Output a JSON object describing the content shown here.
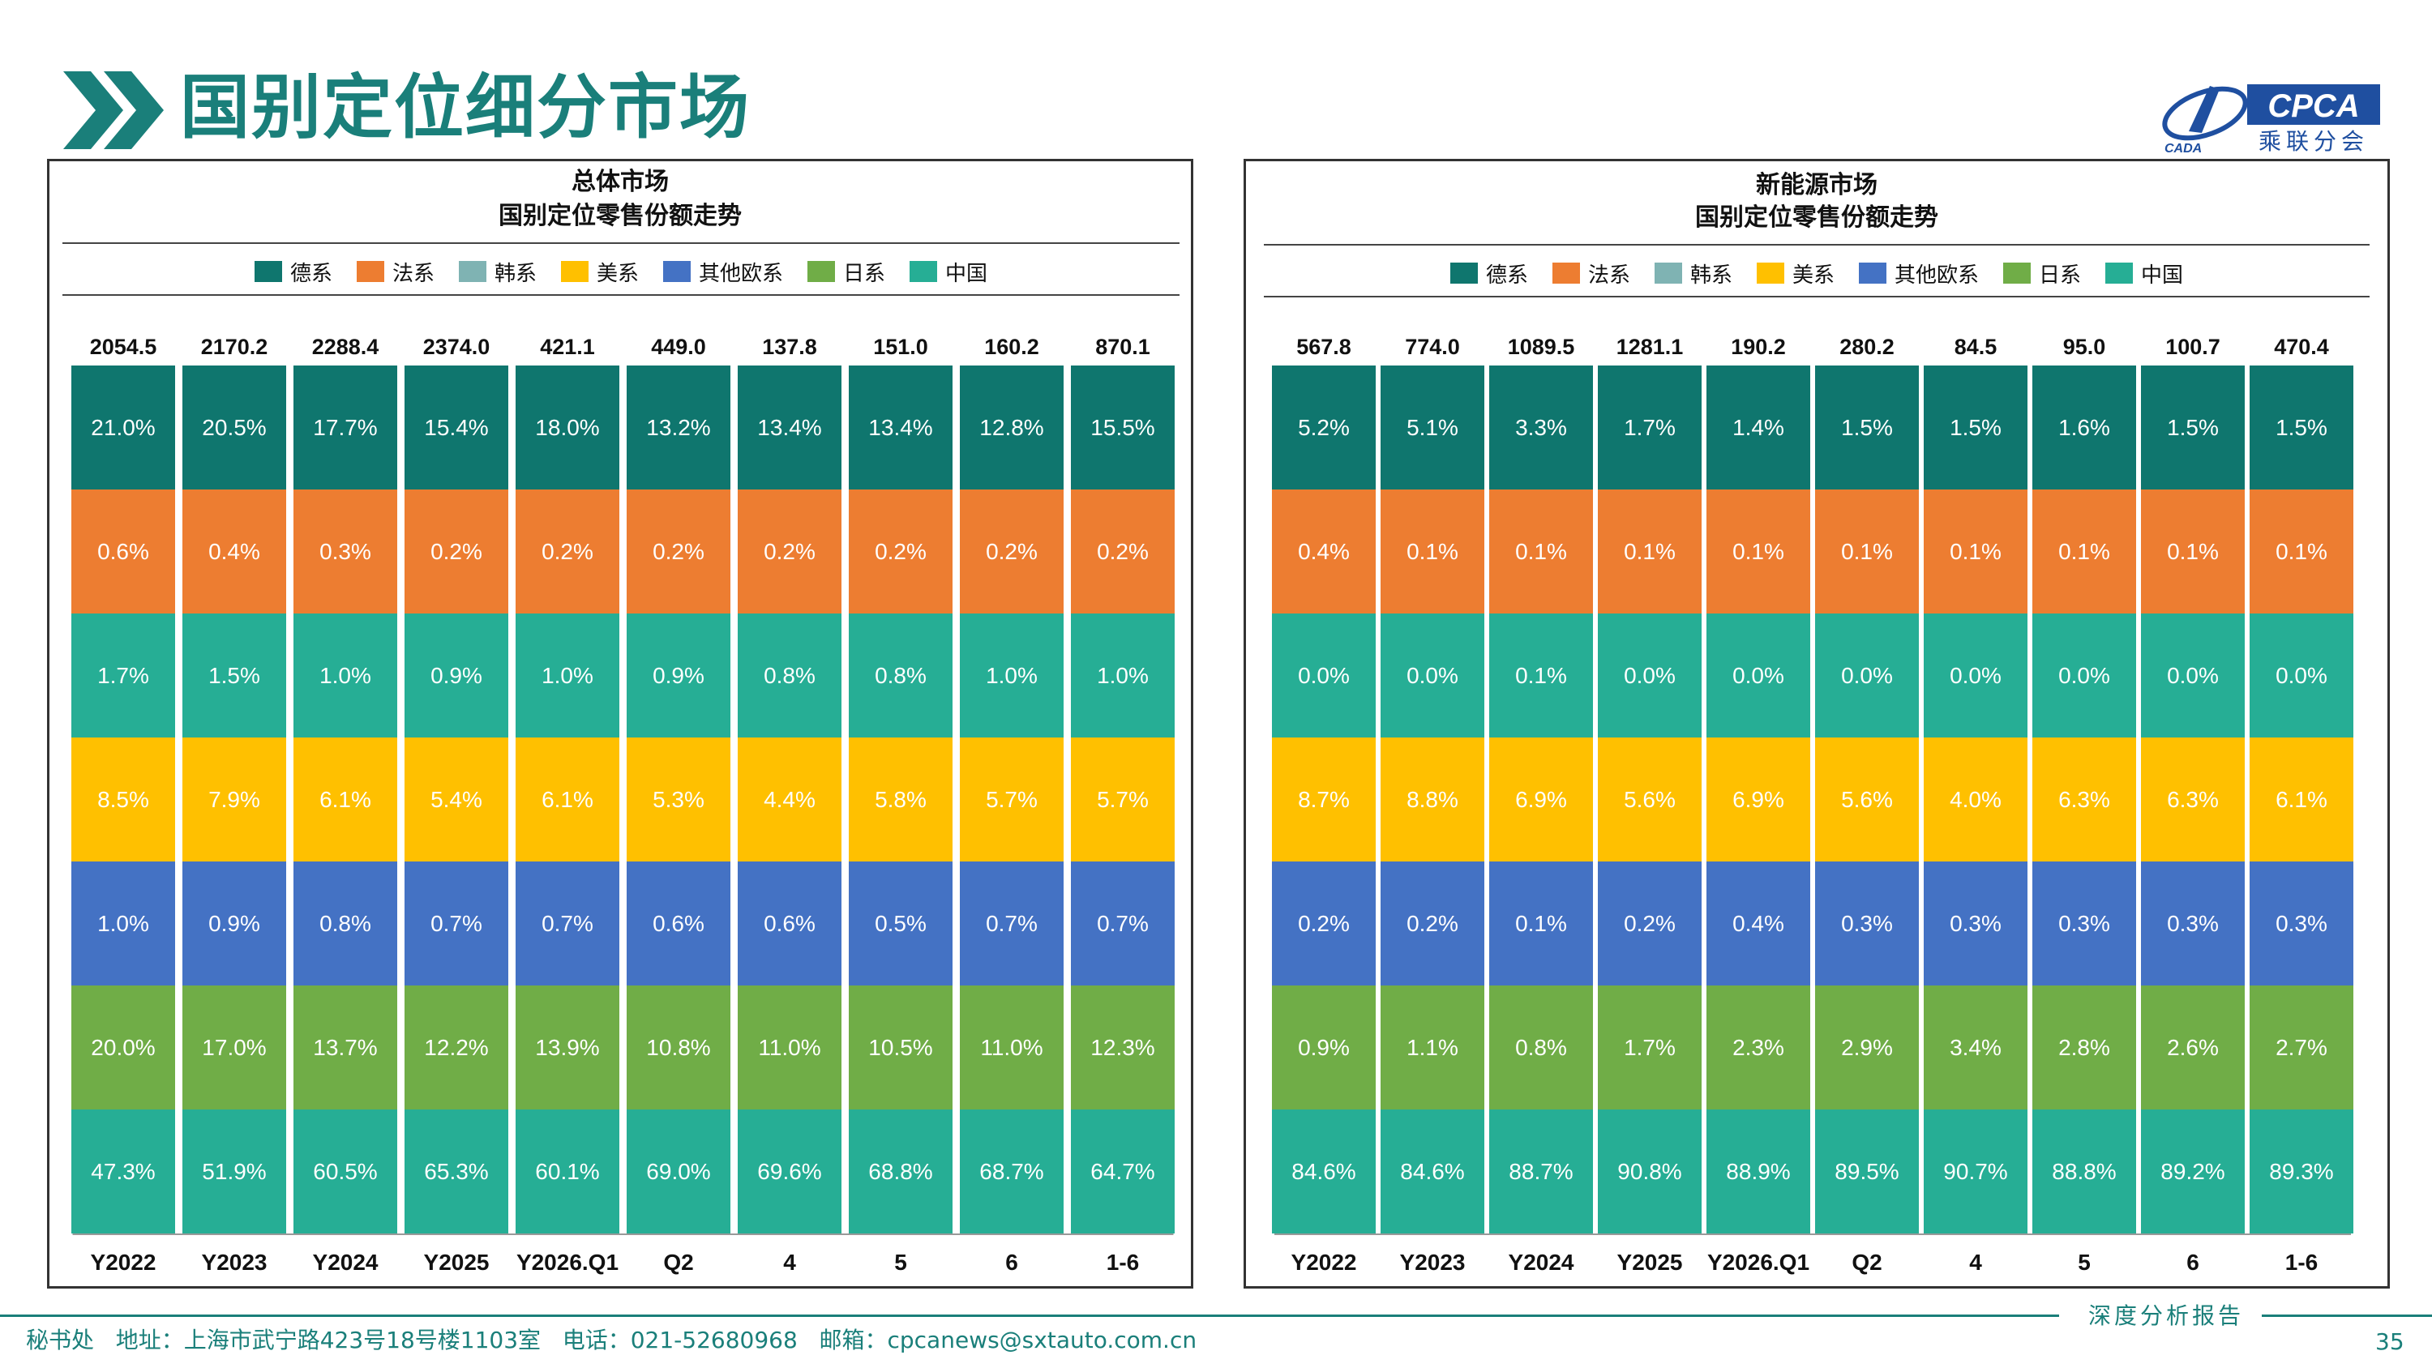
{
  "header": {
    "title": "国别定位细分市场",
    "logo_text": "CPCA",
    "logo_subtext": "乘联分会",
    "logo_small": "CADA"
  },
  "colors": {
    "德系": "#0f766e",
    "法系": "#ed7d31",
    "韩系": "#2aab9a",
    "美系": "#ffc000",
    "其他欧系": "#4472c4",
    "日系": "#70ad47",
    "中国": "#26ae95",
    "accent": "#1a7f7a"
  },
  "chart_data": [
    {
      "type": "bar",
      "stacked": true,
      "percent": true,
      "title": "总体市场",
      "subtitle": "国别定位零售份额走势",
      "legend": [
        "德系",
        "法系",
        "韩系",
        "美系",
        "其他欧系",
        "日系",
        "中国"
      ],
      "legend_position": "top",
      "categories": [
        "Y2022",
        "Y2023",
        "Y2024",
        "Y2025",
        "Y2026.Q1",
        "Q2",
        "4",
        "5",
        "6",
        "1-6"
      ],
      "totals": [
        "2054.5",
        "2170.2",
        "2288.4",
        "2374.0",
        "421.1",
        "449.0",
        "137.8",
        "151.0",
        "160.2",
        "870.1"
      ],
      "series": [
        {
          "name": "德系",
          "labels": [
            "21.0%",
            "20.5%",
            "17.7%",
            "15.4%",
            "18.0%",
            "13.2%",
            "13.4%",
            "13.4%",
            "12.8%",
            "15.5%"
          ]
        },
        {
          "name": "法系",
          "labels": [
            "0.6%",
            "0.4%",
            "0.3%",
            "0.2%",
            "0.2%",
            "0.2%",
            "0.2%",
            "0.2%",
            "0.2%",
            "0.2%"
          ]
        },
        {
          "name": "韩系",
          "labels": [
            "1.7%",
            "1.5%",
            "1.0%",
            "0.9%",
            "1.0%",
            "0.9%",
            "0.8%",
            "0.8%",
            "1.0%",
            "1.0%"
          ]
        },
        {
          "name": "美系",
          "labels": [
            "8.5%",
            "7.9%",
            "6.1%",
            "5.4%",
            "6.1%",
            "5.3%",
            "4.4%",
            "5.8%",
            "5.7%",
            "5.7%"
          ]
        },
        {
          "name": "其他欧系",
          "labels": [
            "1.0%",
            "0.9%",
            "0.8%",
            "0.7%",
            "0.7%",
            "0.6%",
            "0.6%",
            "0.5%",
            "0.7%",
            "0.7%"
          ]
        },
        {
          "name": "日系",
          "labels": [
            "20.0%",
            "17.0%",
            "13.7%",
            "12.2%",
            "13.9%",
            "10.8%",
            "11.0%",
            "10.5%",
            "11.0%",
            "12.3%"
          ]
        },
        {
          "name": "中国",
          "labels": [
            "47.3%",
            "51.9%",
            "60.5%",
            "65.3%",
            "60.1%",
            "69.0%",
            "69.6%",
            "68.8%",
            "68.7%",
            "64.7%"
          ]
        }
      ]
    },
    {
      "type": "bar",
      "stacked": true,
      "percent": true,
      "title": "新能源市场",
      "subtitle": "国别定位零售份额走势",
      "legend": [
        "德系",
        "法系",
        "韩系",
        "美系",
        "其他欧系",
        "日系",
        "中国"
      ],
      "legend_position": "top",
      "categories": [
        "Y2022",
        "Y2023",
        "Y2024",
        "Y2025",
        "Y2026.Q1",
        "Q2",
        "4",
        "5",
        "6",
        "1-6"
      ],
      "totals": [
        "567.8",
        "774.0",
        "1089.5",
        "1281.1",
        "190.2",
        "280.2",
        "84.5",
        "95.0",
        "100.7",
        "470.4"
      ],
      "series": [
        {
          "name": "德系",
          "labels": [
            "5.2%",
            "5.1%",
            "3.3%",
            "1.7%",
            "1.4%",
            "1.5%",
            "1.5%",
            "1.6%",
            "1.5%",
            "1.5%"
          ]
        },
        {
          "name": "法系",
          "labels": [
            "0.4%",
            "0.1%",
            "0.1%",
            "0.1%",
            "0.1%",
            "0.1%",
            "0.1%",
            "0.1%",
            "0.1%",
            "0.1%"
          ]
        },
        {
          "name": "韩系",
          "labels": [
            "0.0%",
            "0.0%",
            "0.1%",
            "0.0%",
            "0.0%",
            "0.0%",
            "0.0%",
            "0.0%",
            "0.0%",
            "0.0%"
          ]
        },
        {
          "name": "美系",
          "labels": [
            "8.7%",
            "8.8%",
            "6.9%",
            "5.6%",
            "6.9%",
            "5.6%",
            "4.0%",
            "6.3%",
            "6.3%",
            "6.1%"
          ]
        },
        {
          "name": "其他欧系",
          "labels": [
            "0.2%",
            "0.2%",
            "0.1%",
            "0.2%",
            "0.4%",
            "0.3%",
            "0.3%",
            "0.3%",
            "0.3%",
            "0.3%"
          ]
        },
        {
          "name": "日系",
          "labels": [
            "0.9%",
            "1.1%",
            "0.8%",
            "1.7%",
            "2.3%",
            "2.9%",
            "3.4%",
            "2.8%",
            "2.6%",
            "2.7%"
          ]
        },
        {
          "name": "中国",
          "labels": [
            "84.6%",
            "84.6%",
            "88.7%",
            "90.8%",
            "88.9%",
            "89.5%",
            "90.7%",
            "88.8%",
            "89.2%",
            "89.3%"
          ]
        }
      ]
    }
  ],
  "footer": {
    "address": "秘书处   地址：上海市武宁路423号18号楼1103室   电话：021-52680968   邮箱：cpcanews@sxtauto.com.cn",
    "report": "深度分析报告",
    "page": "35"
  }
}
